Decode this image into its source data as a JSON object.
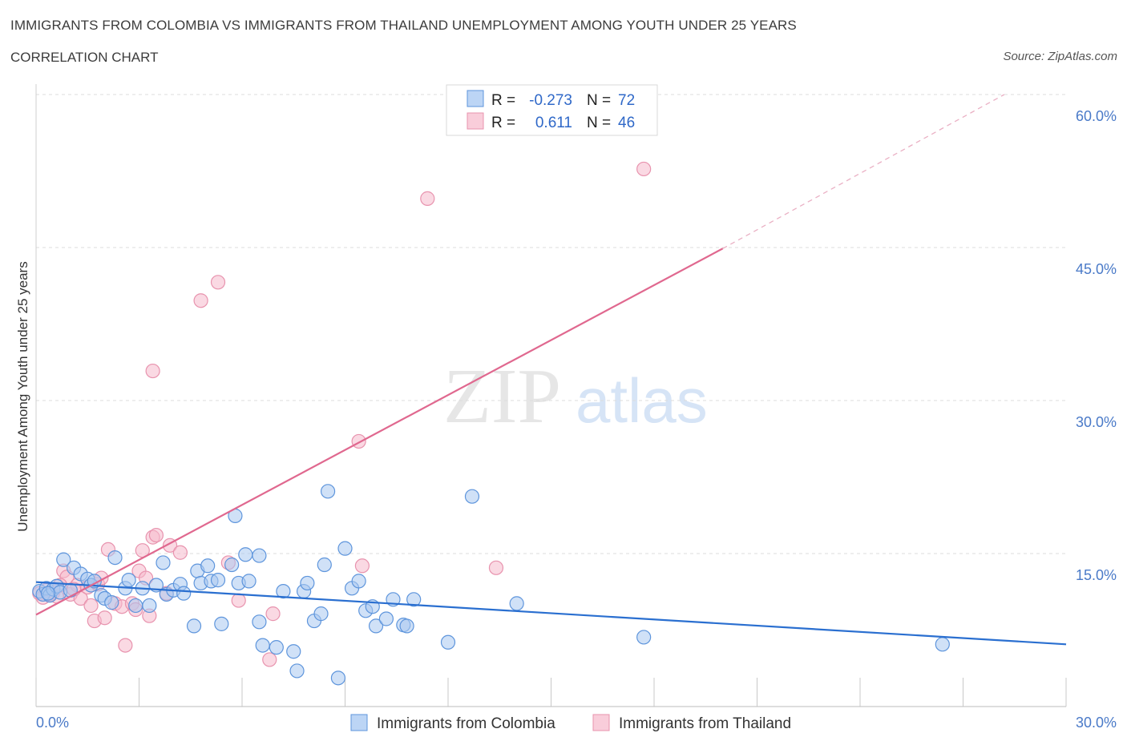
{
  "header": {
    "title": "IMMIGRANTS FROM COLOMBIA VS IMMIGRANTS FROM THAILAND UNEMPLOYMENT AMONG YOUTH UNDER 25 YEARS",
    "subtitle": "CORRELATION CHART",
    "source": "Source: ZipAtlas.com"
  },
  "watermark": {
    "zip": "ZIP",
    "atlas": "atlas"
  },
  "legend": {
    "r_label": "R =",
    "n_label": "N =",
    "rows": [
      {
        "r": "-0.273",
        "n": "72"
      },
      {
        "r": "0.611",
        "n": "46"
      }
    ]
  },
  "bottom_legend": [
    "Immigrants from Colombia",
    "Immigrants from Thailand"
  ],
  "colors": {
    "colombia_fill": "#a9c8f0",
    "colombia_stroke": "#5e95dc",
    "colombia_line": "#2a6fd0",
    "thailand_fill": "#f5b9cc",
    "thailand_stroke": "#e893ae",
    "thailand_line": "#e0688f",
    "tick_label": "#4a7ac8",
    "grid": "#dcdcdc"
  },
  "chart_data": {
    "type": "scatter",
    "title": "IMMIGRANTS FROM COLOMBIA VS IMMIGRANTS FROM THAILAND UNEMPLOYMENT AMONG YOUTH UNDER 25 YEARS",
    "xlabel": "",
    "ylabel": "Unemployment Among Youth under 25 years",
    "xlim": [
      0,
      30
    ],
    "ylim": [
      0,
      60
    ],
    "x_tick_labels": [
      "0.0%",
      "30.0%"
    ],
    "y_ticks": [
      15,
      30,
      45,
      60
    ],
    "y_tick_labels": [
      "15.0%",
      "30.0%",
      "45.0%",
      "60.0%"
    ],
    "legend_position": "top-center",
    "series": [
      {
        "name": "Immigrants from Colombia",
        "r": -0.273,
        "n": 72,
        "trend": {
          "x": [
            0,
            30
          ],
          "y": [
            12.2,
            6.1
          ]
        },
        "points": [
          [
            0.1,
            11.3
          ],
          [
            0.2,
            11.0
          ],
          [
            0.3,
            11.6
          ],
          [
            0.4,
            10.9
          ],
          [
            0.5,
            11.5
          ],
          [
            0.6,
            11.8
          ],
          [
            0.7,
            11.2
          ],
          [
            0.8,
            14.4
          ],
          [
            1.0,
            11.4
          ],
          [
            1.1,
            13.6
          ],
          [
            1.3,
            13.0
          ],
          [
            1.5,
            12.5
          ],
          [
            1.6,
            11.9
          ],
          [
            1.7,
            12.3
          ],
          [
            1.9,
            10.9
          ],
          [
            2.0,
            10.6
          ],
          [
            2.2,
            10.2
          ],
          [
            2.3,
            14.6
          ],
          [
            2.6,
            11.6
          ],
          [
            2.7,
            12.4
          ],
          [
            2.9,
            9.9
          ],
          [
            3.1,
            11.6
          ],
          [
            3.3,
            9.9
          ],
          [
            3.5,
            11.9
          ],
          [
            3.7,
            14.1
          ],
          [
            3.8,
            11.0
          ],
          [
            4.0,
            11.4
          ],
          [
            4.2,
            12.0
          ],
          [
            4.3,
            11.1
          ],
          [
            4.6,
            7.9
          ],
          [
            4.7,
            13.3
          ],
          [
            4.8,
            12.1
          ],
          [
            5.0,
            13.8
          ],
          [
            5.1,
            12.3
          ],
          [
            5.3,
            12.4
          ],
          [
            5.4,
            8.1
          ],
          [
            5.7,
            13.9
          ],
          [
            5.8,
            18.7
          ],
          [
            5.9,
            12.1
          ],
          [
            6.1,
            14.9
          ],
          [
            6.2,
            12.3
          ],
          [
            6.5,
            14.8
          ],
          [
            6.5,
            8.3
          ],
          [
            6.6,
            6.0
          ],
          [
            7.0,
            5.8
          ],
          [
            7.2,
            11.3
          ],
          [
            7.5,
            5.4
          ],
          [
            7.6,
            3.5
          ],
          [
            7.8,
            11.3
          ],
          [
            7.9,
            12.1
          ],
          [
            8.1,
            8.4
          ],
          [
            8.3,
            9.1
          ],
          [
            8.4,
            13.9
          ],
          [
            8.5,
            21.1
          ],
          [
            8.8,
            2.8
          ],
          [
            9.0,
            15.5
          ],
          [
            9.2,
            11.6
          ],
          [
            9.4,
            12.3
          ],
          [
            9.6,
            9.4
          ],
          [
            9.8,
            9.8
          ],
          [
            9.9,
            7.9
          ],
          [
            10.2,
            8.6
          ],
          [
            10.4,
            10.5
          ],
          [
            10.7,
            8.0
          ],
          [
            10.8,
            7.9
          ],
          [
            11.0,
            10.5
          ],
          [
            12.0,
            6.3
          ],
          [
            12.7,
            20.6
          ],
          [
            14.0,
            10.1
          ],
          [
            17.7,
            6.8
          ],
          [
            26.4,
            6.1
          ],
          [
            0.35,
            11.1
          ]
        ]
      },
      {
        "name": "Immigrants from Thailand",
        "r": 0.611,
        "n": 46,
        "trend": {
          "x": [
            0,
            20
          ],
          "y": [
            9.0,
            44.9
          ]
        },
        "trend_dashed": {
          "x": [
            20,
            28.2
          ],
          "y": [
            44.9,
            60.0
          ]
        },
        "points": [
          [
            0.1,
            11.1
          ],
          [
            0.2,
            10.7
          ],
          [
            0.3,
            11.4
          ],
          [
            0.5,
            11.2
          ],
          [
            0.6,
            10.8
          ],
          [
            0.8,
            13.3
          ],
          [
            0.9,
            12.7
          ],
          [
            1.0,
            11.0
          ],
          [
            1.2,
            11.9
          ],
          [
            1.3,
            10.6
          ],
          [
            1.5,
            11.7
          ],
          [
            1.6,
            9.9
          ],
          [
            1.7,
            8.4
          ],
          [
            1.8,
            12.0
          ],
          [
            1.9,
            12.6
          ],
          [
            2.0,
            8.7
          ],
          [
            2.1,
            15.4
          ],
          [
            2.3,
            10.1
          ],
          [
            2.5,
            9.8
          ],
          [
            2.6,
            6.0
          ],
          [
            2.8,
            10.1
          ],
          [
            2.9,
            9.5
          ],
          [
            3.0,
            13.3
          ],
          [
            3.1,
            15.3
          ],
          [
            3.2,
            12.6
          ],
          [
            3.3,
            8.9
          ],
          [
            3.4,
            16.6
          ],
          [
            3.4,
            32.9
          ],
          [
            3.5,
            16.8
          ],
          [
            3.8,
            11.1
          ],
          [
            3.9,
            15.8
          ],
          [
            4.2,
            15.1
          ],
          [
            4.8,
            39.8
          ],
          [
            5.3,
            41.6
          ],
          [
            5.6,
            14.1
          ],
          [
            5.9,
            10.4
          ],
          [
            6.8,
            4.6
          ],
          [
            6.9,
            9.1
          ],
          [
            9.4,
            26.0
          ],
          [
            9.5,
            13.8
          ],
          [
            11.4,
            49.8
          ],
          [
            13.4,
            13.6
          ],
          [
            17.7,
            52.7
          ],
          [
            0.4,
            11.0
          ],
          [
            0.7,
            11.9
          ],
          [
            1.1,
            11.5
          ]
        ]
      }
    ]
  }
}
